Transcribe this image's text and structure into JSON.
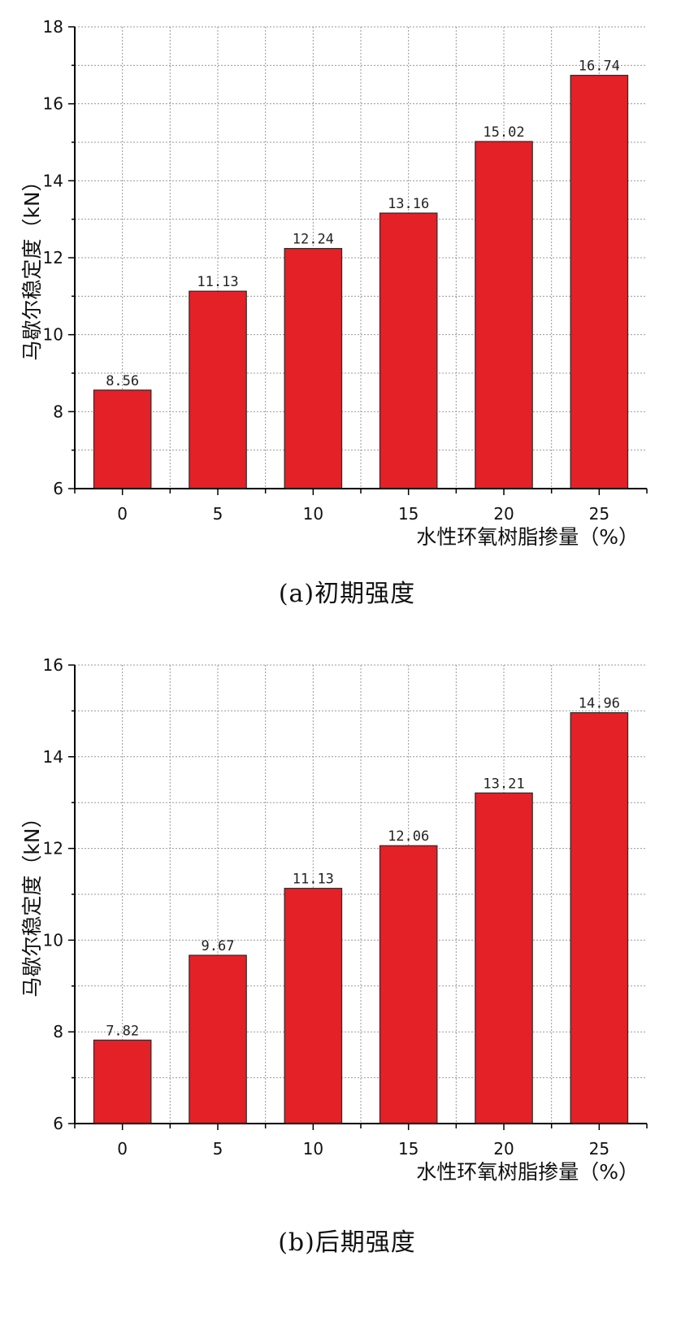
{
  "chart_data": [
    {
      "type": "bar",
      "caption": "(a)初期强度",
      "categories": [
        "0",
        "5",
        "10",
        "15",
        "20",
        "25"
      ],
      "values": [
        8.56,
        11.13,
        12.24,
        13.16,
        15.02,
        16.74
      ],
      "value_labels": [
        "8.56",
        "11.13",
        "12.24",
        "13.16",
        "15.02",
        "16.74"
      ],
      "xlabel": "水性环氧树脂掺量（%）",
      "ylabel": "马歇尔稳定度（kN）",
      "ylim": [
        6,
        18
      ],
      "yticks": [
        "6",
        "8",
        "10",
        "12",
        "14",
        "16",
        "18"
      ],
      "grid": true,
      "bar_color": "#e32127"
    },
    {
      "type": "bar",
      "caption": "(b)后期强度",
      "categories": [
        "0",
        "5",
        "10",
        "15",
        "20",
        "25"
      ],
      "values": [
        7.82,
        9.67,
        11.13,
        12.06,
        13.21,
        14.96
      ],
      "value_labels": [
        "7.82",
        "9.67",
        "11.13",
        "12.06",
        "13.21",
        "14.96"
      ],
      "xlabel": "水性环氧树脂掺量（%）",
      "ylabel": "马歇尔稳定度（kN）",
      "ylim": [
        6,
        16
      ],
      "yticks": [
        "6",
        "8",
        "10",
        "12",
        "14",
        "16"
      ],
      "grid": true,
      "bar_color": "#e32127"
    }
  ]
}
